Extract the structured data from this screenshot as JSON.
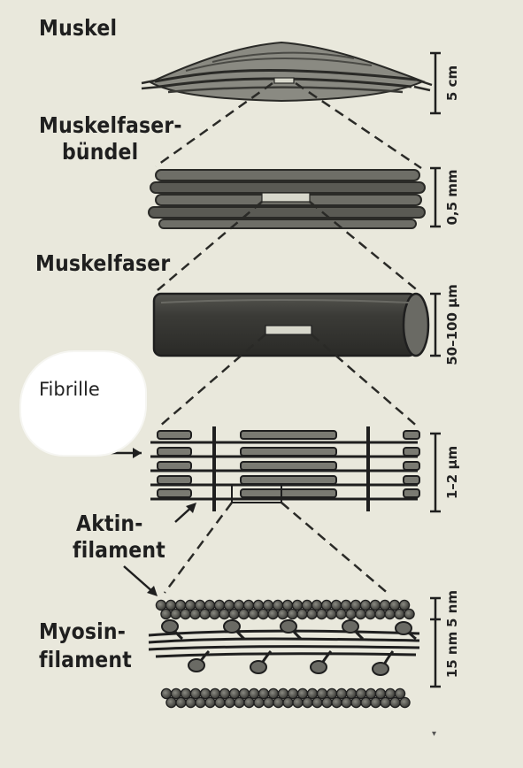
{
  "labels": {
    "muskel": "Muskel",
    "muskelfaserbuendel_line1": "Muskelfaser-",
    "muskelfaserbuendel_line2": "bündel",
    "muskelfaser": "Muskelfaser",
    "fibrille": "Fibrille",
    "aktin_line1": "Aktin-",
    "aktin_line2": "filament",
    "myosin_line1": "Myosin-",
    "myosin_line2": "filament"
  },
  "scales": {
    "muskel": "5 cm",
    "buendel": "0,5 mm",
    "faser": "50–100 µm",
    "fibrille": "1–2 µm",
    "filament_top": "5 nm",
    "filament_total": "15 nm"
  },
  "colors": {
    "paper": "#e9e8dc",
    "ink": "#1f1f1f",
    "grey": "#7a7a72",
    "dark": "#3a3a36"
  }
}
